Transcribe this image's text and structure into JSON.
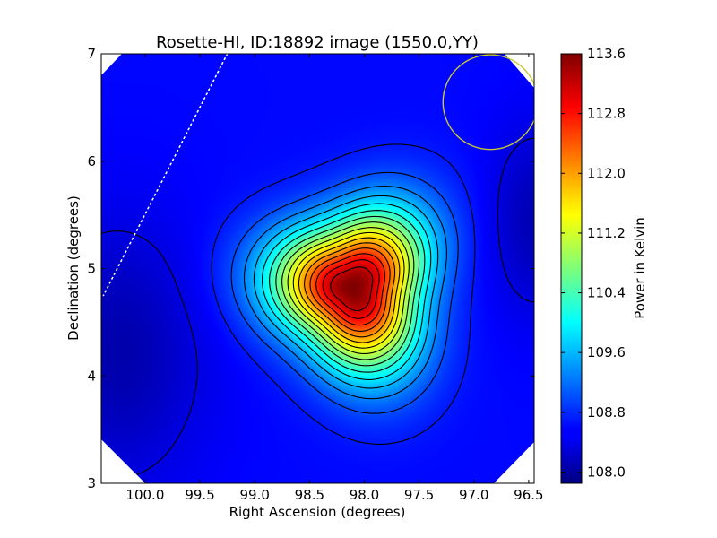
{
  "chart_data": {
    "type": "heatmap",
    "title": "Rosette-HI, ID:18892 image (1550.0,YY)",
    "xlabel": "Right Ascension (degrees)",
    "ylabel": "Declination (degrees)",
    "colorbar_label": "Power in Kelvin",
    "colormap": "jet",
    "x_range": [
      100.4,
      96.45
    ],
    "y_range": [
      3,
      7
    ],
    "x_ticks": [
      "100.0",
      "99.5",
      "99.0",
      "98.5",
      "98.0",
      "97.5",
      "97.0",
      "96.5"
    ],
    "y_ticks": [
      "3",
      "4",
      "5",
      "6",
      "7"
    ],
    "color_range": [
      107.85,
      113.6
    ],
    "colorbar_ticks": [
      "108.0",
      "108.8",
      "109.6",
      "110.4",
      "111.2",
      "112.0",
      "112.8",
      "113.6"
    ],
    "peak": {
      "ra": 98.1,
      "dec": 4.82,
      "value": 113.6
    },
    "background_value": 108.6,
    "contour_levels": [
      108.4,
      108.7,
      109.0,
      109.3,
      109.6,
      109.9,
      110.2,
      110.5,
      110.8,
      111.1,
      111.4,
      111.7,
      112.0,
      112.3,
      112.6,
      112.9,
      113.2
    ],
    "low_regions": [
      {
        "ra": 100.25,
        "dec": 4.2,
        "value": 108.1
      },
      {
        "ra": 96.45,
        "dec": 5.45,
        "value": 108.15
      }
    ],
    "beam_circle": {
      "ra": 96.85,
      "dec": 6.55,
      "radius_deg": 0.36,
      "color": "#c8c832"
    },
    "dotted_line": {
      "from": {
        "ra": 99.25,
        "dec": 7.0
      },
      "to": {
        "ra": 100.38,
        "dec": 4.75
      },
      "color": "#ffffff"
    }
  }
}
